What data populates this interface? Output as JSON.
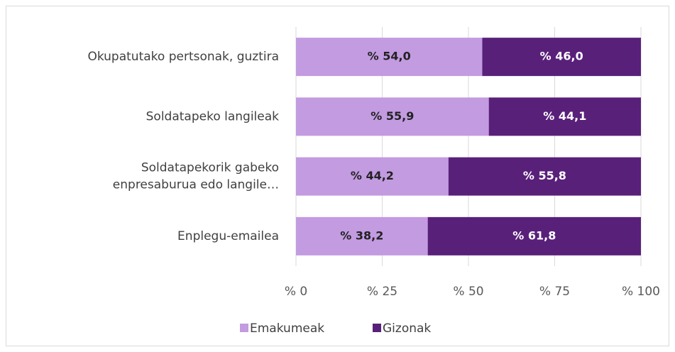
{
  "chart_data": {
    "type": "stacked_bar_horizontal",
    "categories": [
      "Okupatutako pertsonak, guztira",
      "Soldatapeko langileak",
      "Soldatapekorik gabeko\nenpresaburua edo langile…",
      "Enplegu-emailea"
    ],
    "series": [
      {
        "name": "Emakumeak",
        "color": "#c39be1",
        "values": [
          54.0,
          55.9,
          44.2,
          38.2
        ],
        "value_labels": [
          "% 54,0",
          "% 55,9",
          "% 44,2",
          "% 38,2"
        ],
        "label_color": "#222222"
      },
      {
        "name": "Gizonak",
        "color": "#59207a",
        "values": [
          46.0,
          44.1,
          55.8,
          61.8
        ],
        "value_labels": [
          "% 46,0",
          "% 44,1",
          "% 55,8",
          "% 61,8"
        ],
        "label_color": "#ffffff"
      }
    ],
    "xlim": [
      0,
      100
    ],
    "xticks": [
      {
        "value": 0,
        "label": "% 0"
      },
      {
        "value": 25,
        "label": "% 25"
      },
      {
        "value": 50,
        "label": "% 50"
      },
      {
        "value": 75,
        "label": "% 75"
      },
      {
        "value": 100,
        "label": "% 100"
      }
    ],
    "grid": true,
    "legend": "bottom"
  }
}
